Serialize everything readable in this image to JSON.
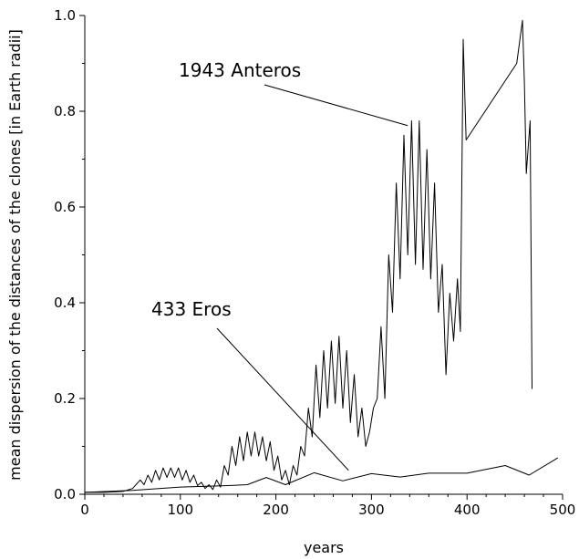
{
  "chart_data": {
    "type": "line",
    "title": "",
    "xlabel": "years",
    "ylabel": "mean dispersion of the distances of the clones [in Earth radii]",
    "xlim": [
      0,
      500
    ],
    "ylim": [
      0,
      1.0
    ],
    "x_ticks": [
      "0",
      "100",
      "200",
      "300",
      "400",
      "500"
    ],
    "y_ticks": [
      "0.0",
      "0.2",
      "0.4",
      "0.6",
      "0.8",
      "1.0"
    ],
    "grid": false,
    "legend": "none",
    "series": [
      {
        "name": "1943 Anteros",
        "x": [
          0,
          20,
          40,
          50,
          58,
          62,
          66,
          70,
          74,
          78,
          82,
          86,
          90,
          94,
          98,
          102,
          106,
          110,
          114,
          118,
          122,
          126,
          130,
          134,
          138,
          142,
          146,
          150,
          154,
          158,
          162,
          166,
          170,
          174,
          178,
          182,
          186,
          190,
          194,
          198,
          202,
          206,
          210,
          214,
          218,
          222,
          226,
          230,
          234,
          238,
          242,
          246,
          250,
          254,
          258,
          262,
          266,
          270,
          274,
          278,
          282,
          286,
          290,
          294,
          298,
          302,
          306,
          310,
          314,
          318,
          322,
          326,
          330,
          334,
          338,
          342,
          346,
          350,
          354,
          358,
          362,
          366,
          370,
          374,
          378,
          382,
          386,
          390,
          393,
          396,
          399,
          452,
          458,
          460,
          462,
          466,
          468
        ],
        "y": [
          0.004,
          0.004,
          0.006,
          0.012,
          0.03,
          0.02,
          0.04,
          0.025,
          0.05,
          0.03,
          0.055,
          0.035,
          0.055,
          0.035,
          0.055,
          0.03,
          0.05,
          0.025,
          0.04,
          0.018,
          0.025,
          0.012,
          0.02,
          0.01,
          0.03,
          0.015,
          0.06,
          0.04,
          0.1,
          0.06,
          0.12,
          0.07,
          0.13,
          0.08,
          0.13,
          0.08,
          0.12,
          0.07,
          0.11,
          0.05,
          0.08,
          0.03,
          0.05,
          0.02,
          0.06,
          0.04,
          0.1,
          0.08,
          0.18,
          0.12,
          0.27,
          0.16,
          0.3,
          0.18,
          0.32,
          0.19,
          0.33,
          0.18,
          0.3,
          0.15,
          0.25,
          0.12,
          0.18,
          0.1,
          0.13,
          0.18,
          0.2,
          0.35,
          0.2,
          0.5,
          0.38,
          0.65,
          0.45,
          0.75,
          0.5,
          0.78,
          0.48,
          0.78,
          0.47,
          0.72,
          0.45,
          0.65,
          0.38,
          0.48,
          0.25,
          0.42,
          0.32,
          0.45,
          0.34,
          0.95,
          0.74,
          0.9,
          0.99,
          0.86,
          0.67,
          0.78,
          0.22
        ],
        "label": "1943 Anteros",
        "color": "#000000"
      },
      {
        "name": "433 Eros",
        "x": [
          0,
          50,
          100,
          150,
          170,
          190,
          210,
          240,
          270,
          300,
          330,
          360,
          400,
          440,
          465,
          495
        ],
        "y": [
          0.004,
          0.008,
          0.015,
          0.018,
          0.02,
          0.035,
          0.02,
          0.045,
          0.028,
          0.043,
          0.036,
          0.044,
          0.044,
          0.06,
          0.04,
          0.076
        ],
        "label": "433 Eros",
        "color": "#000000"
      }
    ],
    "annotations": [
      {
        "text": "1943 Anteros",
        "target_x": 338,
        "target_y": 0.77
      },
      {
        "text": "433 Eros",
        "target_x": 276,
        "target_y": 0.05
      }
    ]
  }
}
